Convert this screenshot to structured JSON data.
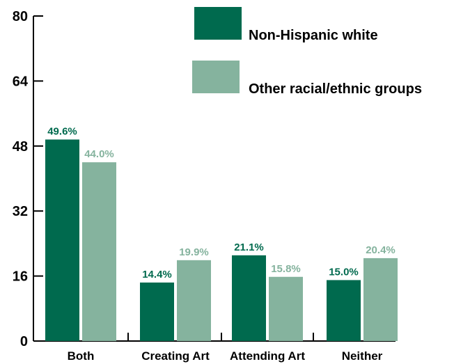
{
  "chart_data": {
    "type": "bar",
    "title": "",
    "xlabel": "",
    "ylabel": "",
    "ylim": [
      0,
      80
    ],
    "yticks": [
      0,
      16,
      32,
      48,
      64,
      80
    ],
    "categories": [
      "Both",
      "Creating Art",
      "Attending Art",
      "Neither"
    ],
    "series": [
      {
        "name": "Non-Hispanic white",
        "color": "#006a4e",
        "values": [
          49.6,
          14.4,
          21.1,
          15.0
        ],
        "labels": [
          "49.6%",
          "14.4%",
          "21.1%",
          "15.0%"
        ]
      },
      {
        "name": "Other racial/ethnic groups",
        "color": "#85b39e",
        "values": [
          44.0,
          19.9,
          15.8,
          20.4
        ],
        "labels": [
          "44.0%",
          "19.9%",
          "15.8%",
          "20.4%"
        ]
      }
    ],
    "legend_position": "top-right",
    "grid": false
  }
}
